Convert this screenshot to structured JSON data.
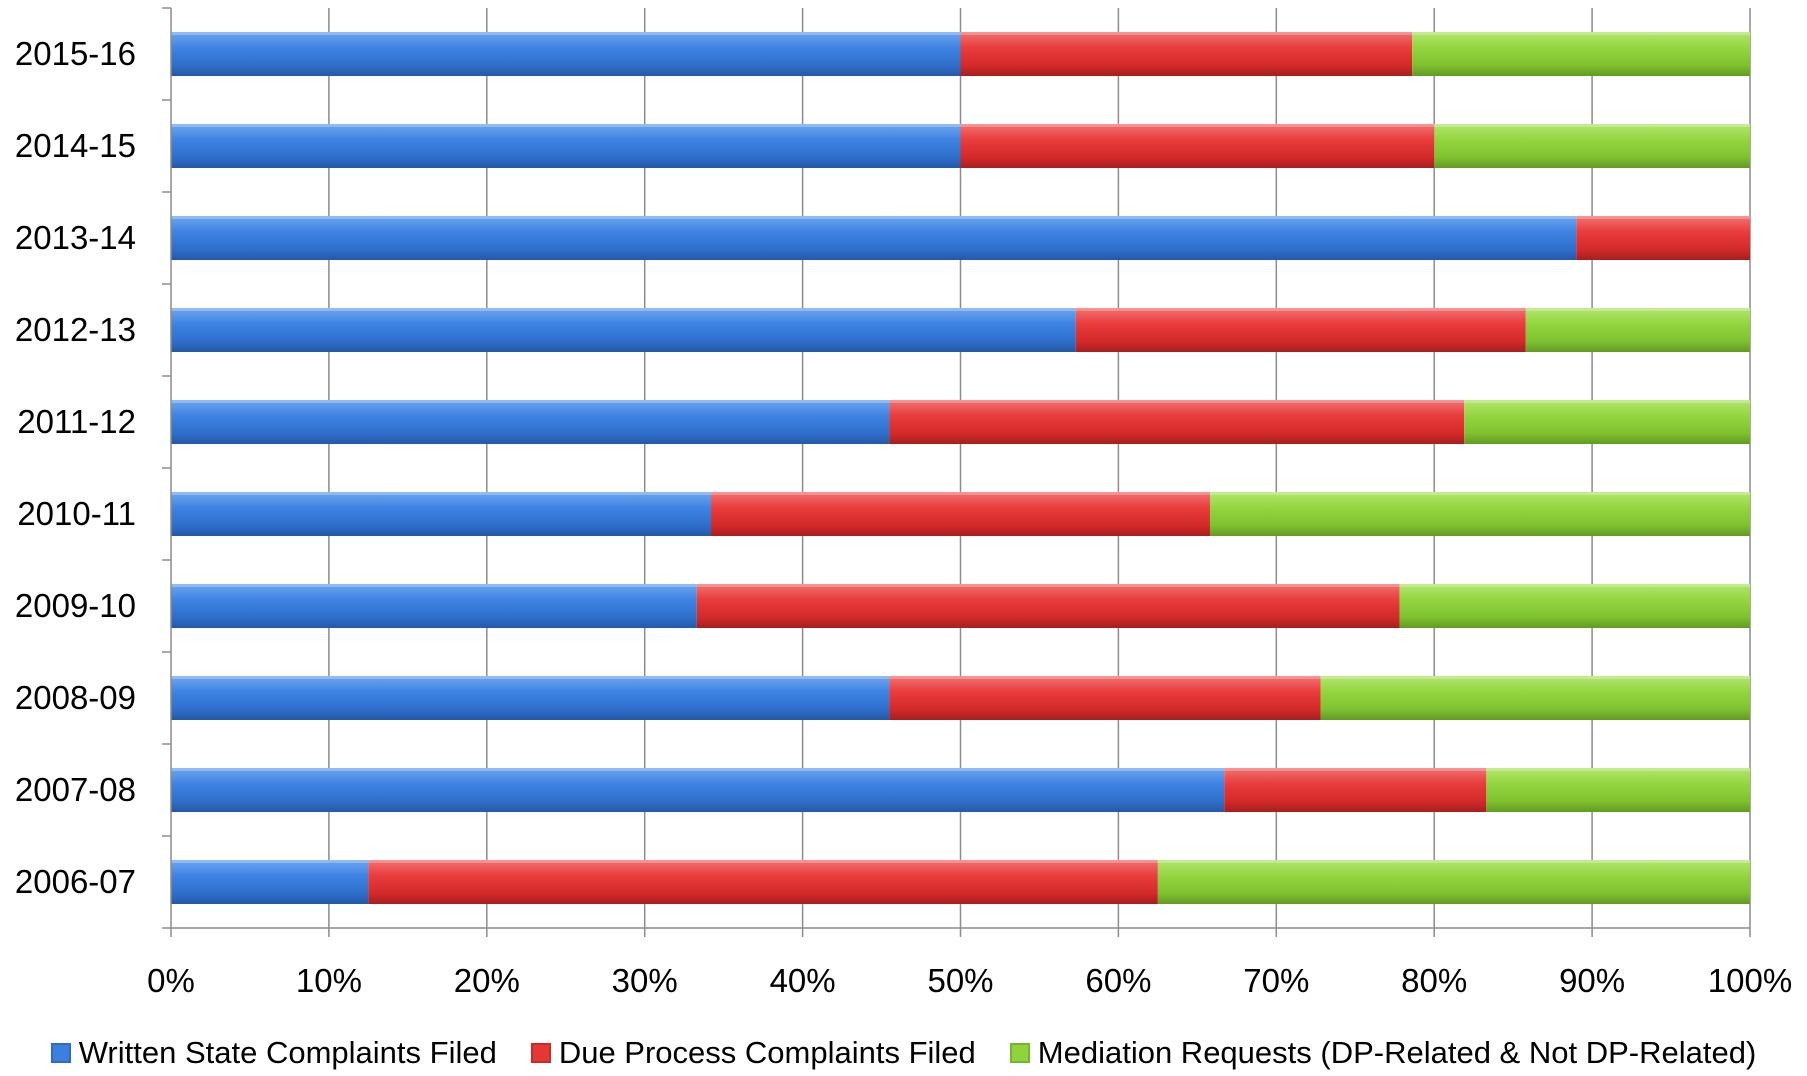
{
  "chart_data": {
    "type": "bar",
    "orientation": "horizontal",
    "stacked": "percent",
    "categories": [
      "2015-16",
      "2014-15",
      "2013-14",
      "2012-13",
      "2011-12",
      "2010-11",
      "2009-10",
      "2008-09",
      "2007-08",
      "2006-07"
    ],
    "series": [
      {
        "name": "Written State Complaints Filed",
        "color": "#3b7fe0",
        "values": [
          50,
          50,
          89,
          57.3,
          45.5,
          34.2,
          33.3,
          45.5,
          66.7,
          12.5
        ]
      },
      {
        "name": "Due Process Complaints Filed",
        "color": "#e83535",
        "values": [
          28.6,
          30,
          11,
          28.5,
          36.4,
          31.6,
          44.5,
          27.3,
          16.6,
          50
        ]
      },
      {
        "name": "Mediation Requests (DP-Related & Not DP-Related)",
        "color": "#8fd43a",
        "values": [
          21.4,
          20,
          0,
          14.2,
          18.1,
          34.2,
          22.2,
          27.2,
          16.7,
          37.5
        ]
      }
    ],
    "xticks": [
      "0%",
      "10%",
      "20%",
      "30%",
      "40%",
      "50%",
      "60%",
      "70%",
      "80%",
      "90%",
      "100%"
    ],
    "xlim": [
      0,
      100
    ],
    "grid": true,
    "legend_position": "bottom",
    "title": "",
    "xlabel": "",
    "ylabel": ""
  }
}
